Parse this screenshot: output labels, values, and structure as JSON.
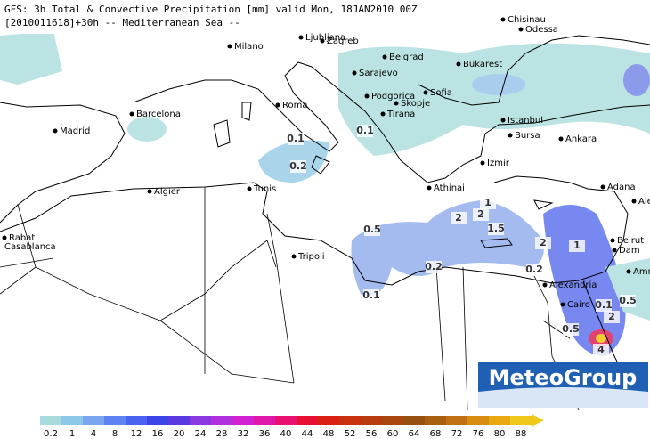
{
  "header": {
    "line1": "GFS: 3h Total & Convective Precipitation [mm] valid Mon, 18JAN2010 00Z",
    "line2": "[2010011618]+30h  -- Mediterranean Sea --"
  },
  "cities": [
    "Chisinau",
    "Odessa",
    "Milano",
    "Ljubljana",
    "Zagreb",
    "Belgrad",
    "Bukarest",
    "Sarajevo",
    "Podgorica",
    "Sofia",
    "Skopje",
    "Roma",
    "Tirana",
    "Barcelona",
    "Istanbul",
    "Madrid",
    "Bursa",
    "Ankara",
    "Izmir",
    "Algier",
    "Tunis",
    "Athinai",
    "Adana",
    "Ale",
    "Rabat",
    "Casablanca",
    "Beirut",
    "Dam",
    "Tripoli",
    "Amm",
    "Alexandria",
    "Cairo"
  ],
  "contour_labels": [
    "0.1",
    "0.2",
    "0.1",
    "0.5",
    "2",
    "2",
    "1",
    "1.5",
    "2",
    "1",
    "0.2",
    "0.2",
    "0.1",
    "0.5",
    "0.1",
    "2",
    "0.5",
    "4"
  ],
  "legend": {
    "values": [
      0.2,
      1,
      4,
      8,
      12,
      16,
      20,
      24,
      28,
      32,
      36,
      40,
      44,
      48,
      52,
      56,
      60,
      64,
      68,
      72,
      76,
      80,
      88
    ],
    "colors": [
      "#a8dcdc",
      "#8ec8e8",
      "#7aa6f0",
      "#5e82f2",
      "#4a62f0",
      "#3a44e8",
      "#5a3ae0",
      "#8a38e0",
      "#b030e0",
      "#d020d0",
      "#e018a8",
      "#e81070",
      "#e81030",
      "#d82010",
      "#c83010",
      "#b83c10",
      "#a84810",
      "#985010",
      "#a86010",
      "#c07010",
      "#d88c10",
      "#e8a810",
      "#f0c818"
    ]
  },
  "logo": "MeteoGroup"
}
